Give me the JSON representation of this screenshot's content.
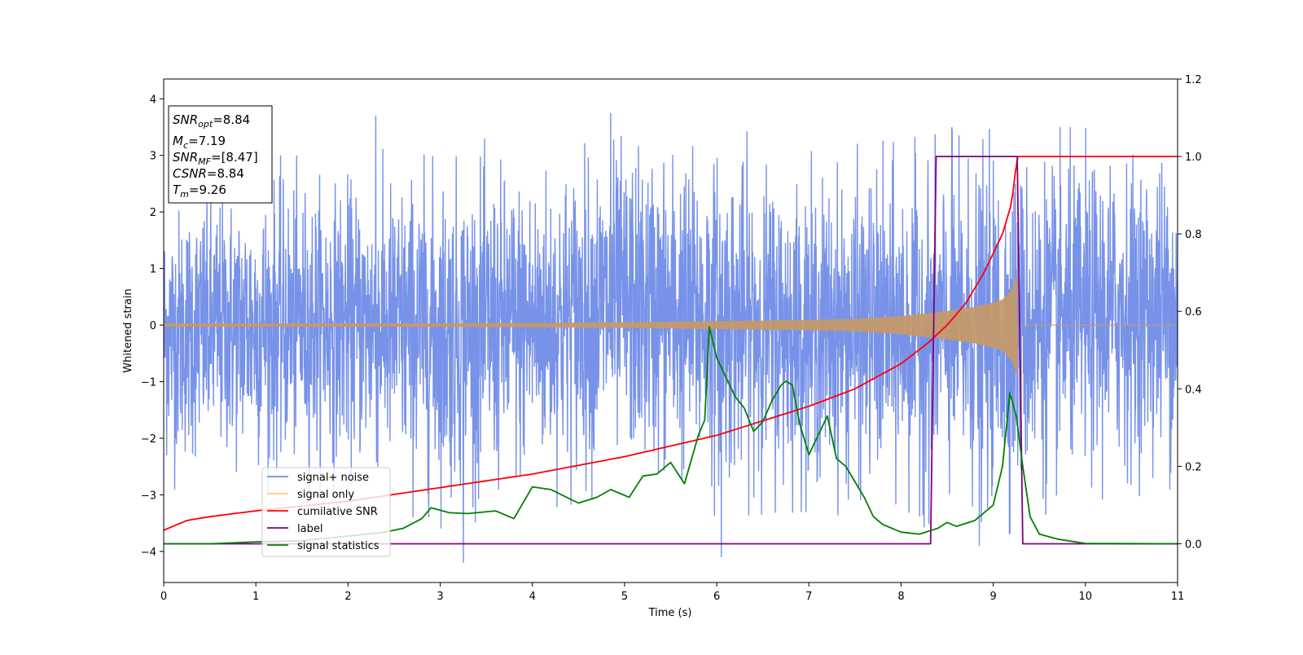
{
  "chart_data": {
    "type": "line",
    "xlabel": "Time (s)",
    "ylabel": "Whitened strain",
    "xlim": [
      0,
      11
    ],
    "ylim_left": [
      -4.55,
      4.35
    ],
    "ylim_right": [
      -0.1,
      1.2
    ],
    "x_ticks": [
      0,
      1,
      2,
      3,
      4,
      5,
      6,
      7,
      8,
      9,
      10,
      11
    ],
    "y_ticks_left": [
      -4,
      -3,
      -2,
      -1,
      0,
      1,
      2,
      3,
      4
    ],
    "y_ticks_right": [
      0.0,
      0.2,
      0.4,
      0.6,
      0.8,
      1.0,
      1.2
    ],
    "y_ticks_right_labels": [
      "0.0",
      "0.2",
      "0.4",
      "0.6",
      "0.8",
      "1.0",
      "1.2"
    ],
    "grid": false,
    "legend_position": "lower-left",
    "annotation_lines": [
      {
        "name": "SNR",
        "sub": "opt",
        "value": "=8.84"
      },
      {
        "name": "M",
        "sub": "c",
        "value": "=7.19"
      },
      {
        "name": "SNR",
        "sub": "MF",
        "value": "=[8.47]"
      },
      {
        "name": "CSNR",
        "sub": "",
        "value": "=8.84"
      },
      {
        "name": "T",
        "sub": "m",
        "value": "=9.26"
      }
    ],
    "series": [
      {
        "name": "signal+ noise",
        "axis": "left",
        "color": "#6b89e6",
        "kind": "noise-band",
        "x": [
          0,
          1,
          2,
          3,
          4,
          5,
          6,
          7,
          8,
          9,
          10,
          11
        ],
        "upper_envelope": [
          2.6,
          3.0,
          3.0,
          3.3,
          3.3,
          3.7,
          3.6,
          3.1,
          3.3,
          3.5,
          3.5,
          3.5
        ],
        "lower_envelope": [
          -2.9,
          -3.0,
          -2.9,
          -3.6,
          -3.3,
          -3.0,
          -3.4,
          -3.3,
          -3.5,
          -3.8,
          -3.2,
          -2.9
        ],
        "extreme_spikes": [
          {
            "x": 2.3,
            "y": 3.7
          },
          {
            "x": 3.25,
            "y": -4.2
          },
          {
            "x": 4.85,
            "y": 3.75
          },
          {
            "x": 6.05,
            "y": -4.1
          },
          {
            "x": 8.55,
            "y": 3.5
          },
          {
            "x": 8.85,
            "y": -3.9
          }
        ]
      },
      {
        "name": "signal only",
        "axis": "left",
        "color": "#c49a6c",
        "kind": "chirp",
        "amplitude_x": [
          0,
          3,
          5,
          6,
          7,
          7.5,
          8,
          8.5,
          8.8,
          9.0,
          9.1,
          9.2,
          9.26
        ],
        "amplitude_y": [
          0.03,
          0.03,
          0.05,
          0.07,
          0.09,
          0.11,
          0.16,
          0.25,
          0.32,
          0.4,
          0.45,
          0.62,
          0.9
        ],
        "merger_time": 9.26
      },
      {
        "name": "cumilative SNR",
        "axis": "right",
        "color": "#ff0000",
        "x": [
          0,
          0.25,
          0.5,
          1,
          2,
          3,
          4,
          5,
          6,
          7,
          7.5,
          8,
          8.3,
          8.5,
          8.7,
          8.9,
          9.0,
          9.1,
          9.2,
          9.26,
          11
        ],
        "y": [
          0.035,
          0.06,
          0.07,
          0.085,
          0.11,
          0.145,
          0.18,
          0.225,
          0.28,
          0.355,
          0.4,
          0.465,
          0.52,
          0.565,
          0.62,
          0.7,
          0.75,
          0.8,
          0.88,
          1.0,
          1.0
        ]
      },
      {
        "name": "label",
        "axis": "right",
        "color": "#800080",
        "x": [
          0,
          8.32,
          8.38,
          9.26,
          9.32,
          11
        ],
        "y": [
          0.0,
          0.0,
          1.0,
          1.0,
          0.0,
          0.0
        ]
      },
      {
        "name": "signal statistics",
        "axis": "right",
        "color": "#008000",
        "x": [
          0,
          0.5,
          1,
          1.5,
          2,
          2.4,
          2.6,
          2.8,
          2.9,
          3.1,
          3.3,
          3.6,
          3.8,
          4.0,
          4.2,
          4.5,
          4.7,
          4.85,
          5.05,
          5.2,
          5.35,
          5.5,
          5.65,
          5.8,
          5.87,
          5.92,
          6.0,
          6.1,
          6.2,
          6.3,
          6.4,
          6.5,
          6.6,
          6.7,
          6.75,
          6.82,
          6.9,
          7.0,
          7.1,
          7.2,
          7.3,
          7.4,
          7.5,
          7.6,
          7.7,
          7.8,
          7.9,
          8.0,
          8.2,
          8.4,
          8.5,
          8.6,
          8.8,
          9.0,
          9.1,
          9.18,
          9.25,
          9.32,
          9.4,
          9.5,
          9.7,
          10.0,
          11
        ],
        "y": [
          0.0,
          0.0,
          0.005,
          0.008,
          0.02,
          0.03,
          0.04,
          0.065,
          0.093,
          0.08,
          0.078,
          0.085,
          0.065,
          0.147,
          0.14,
          0.105,
          0.12,
          0.14,
          0.12,
          0.175,
          0.18,
          0.21,
          0.155,
          0.28,
          0.32,
          0.56,
          0.48,
          0.43,
          0.38,
          0.35,
          0.29,
          0.315,
          0.37,
          0.41,
          0.42,
          0.41,
          0.31,
          0.23,
          0.28,
          0.33,
          0.22,
          0.2,
          0.16,
          0.12,
          0.07,
          0.05,
          0.04,
          0.03,
          0.025,
          0.04,
          0.055,
          0.045,
          0.06,
          0.1,
          0.2,
          0.39,
          0.33,
          0.2,
          0.07,
          0.025,
          0.012,
          0.001,
          0.0
        ]
      }
    ]
  }
}
